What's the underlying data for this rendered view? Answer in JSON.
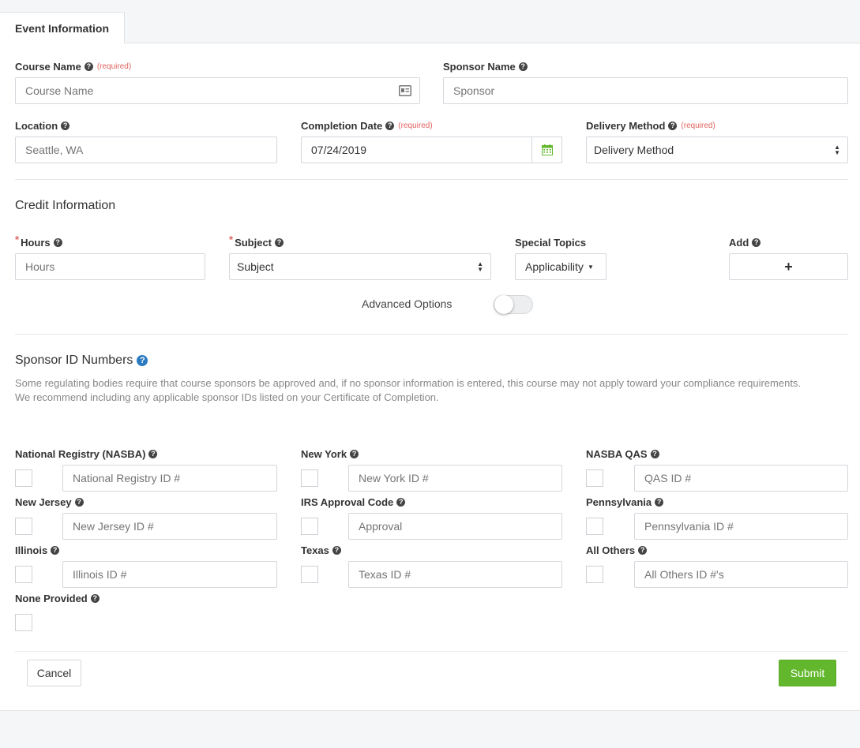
{
  "tabs": [
    {
      "label": "Event Information",
      "active": true
    }
  ],
  "event": {
    "course_name": {
      "label": "Course Name",
      "required": "(required)",
      "placeholder": "Course Name",
      "icon": "id-card-icon"
    },
    "sponsor_name": {
      "label": "Sponsor Name",
      "placeholder": "Sponsor"
    },
    "location": {
      "label": "Location",
      "placeholder": "Seattle, WA"
    },
    "completion_date": {
      "label": "Completion Date",
      "required": "(required)",
      "value": "07/24/2019",
      "icon": "calendar-icon"
    },
    "delivery_method": {
      "label": "Delivery Method",
      "required": "(required)",
      "selected": "Delivery Method"
    }
  },
  "credit": {
    "title": "Credit Information",
    "required_mark": "*",
    "hours": {
      "label": "Hours",
      "placeholder": "Hours"
    },
    "subject": {
      "label": "Subject",
      "selected": "Subject"
    },
    "special_topics": {
      "label": "Special Topics",
      "button": "Applicability"
    },
    "add": {
      "label": "Add",
      "button": "+"
    },
    "advanced_options": {
      "label": "Advanced Options",
      "enabled": false
    }
  },
  "sponsor_ids": {
    "title": "Sponsor ID Numbers",
    "description_1": "Some regulating bodies require that course sponsors be approved and, if no sponsor information is entered, this course may not apply toward your compliance requirements.",
    "description_2": "We recommend including any applicable sponsor IDs listed on your Certificate of Completion.",
    "items": [
      {
        "label": "National Registry (NASBA)",
        "placeholder": "National Registry ID #"
      },
      {
        "label": "New York",
        "placeholder": "New York ID #"
      },
      {
        "label": "NASBA QAS",
        "placeholder": "QAS ID #"
      },
      {
        "label": "New Jersey",
        "placeholder": "New Jersey ID #"
      },
      {
        "label": "IRS Approval Code",
        "placeholder": "Approval"
      },
      {
        "label": "Pennsylvania",
        "placeholder": "Pennsylvania ID #"
      },
      {
        "label": "Illinois",
        "placeholder": "Illinois ID #"
      },
      {
        "label": "Texas",
        "placeholder": "Texas ID #"
      },
      {
        "label": "All Others",
        "placeholder": "All Others ID #'s"
      }
    ],
    "none_provided": {
      "label": "None Provided"
    }
  },
  "actions": {
    "cancel": "Cancel",
    "submit": "Submit"
  },
  "help_glyph": "?",
  "colors": {
    "submit": "#62b72c",
    "required": "#e0635f",
    "calendar": "#62b72c",
    "help_blue": "#2a7ac0"
  }
}
